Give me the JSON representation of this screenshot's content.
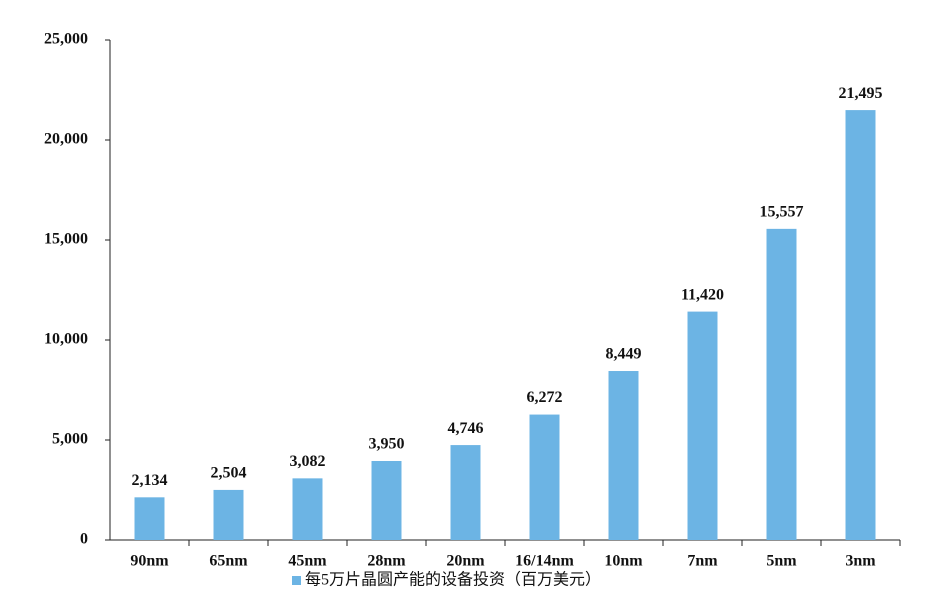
{
  "chart_data": {
    "type": "bar",
    "categories": [
      "90nm",
      "65nm",
      "45nm",
      "28nm",
      "20nm",
      "16/14nm",
      "10nm",
      "7nm",
      "5nm",
      "3nm"
    ],
    "series": [
      {
        "name": "每5万片晶圆产能的设备投资（百万美元）",
        "color": "#6cb4e4",
        "values": [
          2134,
          2504,
          3082,
          3950,
          4746,
          6272,
          8449,
          11420,
          15557,
          21495
        ],
        "value_labels": [
          "2,134",
          "2,504",
          "3,082",
          "3,950",
          "4,746",
          "6,272",
          "8,449",
          "11,420",
          "15,557",
          "21,495"
        ]
      }
    ],
    "ylim": [
      0,
      25000
    ],
    "yticks": [
      0,
      {
        "value": 5000,
        "label": "5,000"
      },
      {
        "value": 10000,
        "label": "10,000"
      },
      {
        "value": 15000,
        "label": "15,000"
      },
      {
        "value": 20000,
        "label": "20,000"
      },
      {
        "value": 25000,
        "label": "25,000"
      }
    ],
    "grid": false,
    "legend": "bottom"
  }
}
